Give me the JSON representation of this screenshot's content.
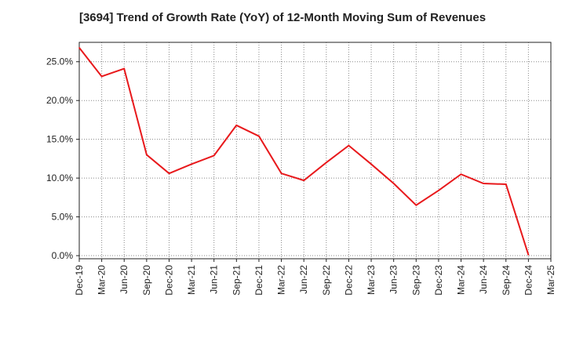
{
  "chart_data": {
    "type": "line",
    "title": "[3694]  Trend of Growth Rate (YoY) of 12-Month Moving Sum of Revenues",
    "xlabel": "",
    "ylabel": "",
    "categories": [
      "Dec-19",
      "Mar-20",
      "Jun-20",
      "Sep-20",
      "Dec-20",
      "Mar-21",
      "Jun-21",
      "Sep-21",
      "Dec-21",
      "Mar-22",
      "Jun-22",
      "Sep-22",
      "Dec-22",
      "Mar-23",
      "Jun-23",
      "Sep-23",
      "Dec-23",
      "Mar-24",
      "Jun-24",
      "Sep-24",
      "Dec-24",
      "Mar-25"
    ],
    "series": [
      {
        "color": "#e8191c",
        "values": [
          26.8,
          23.1,
          24.1,
          13.0,
          10.6,
          11.8,
          12.9,
          16.8,
          15.4,
          10.6,
          9.7,
          12.0,
          14.2,
          11.8,
          9.3,
          6.5,
          8.4,
          10.5,
          9.3,
          9.2,
          0.1,
          null
        ]
      }
    ],
    "ylim": [
      -0.4,
      27.5
    ],
    "yticks": [
      0,
      5,
      10,
      15,
      20,
      25
    ],
    "ytick_labels": [
      "0.0%",
      "5.0%",
      "10.0%",
      "15.0%",
      "20.0%",
      "25.0%"
    ],
    "grid": true,
    "grid_color": "#888888",
    "axis_color": "#222222",
    "legend": "none"
  }
}
